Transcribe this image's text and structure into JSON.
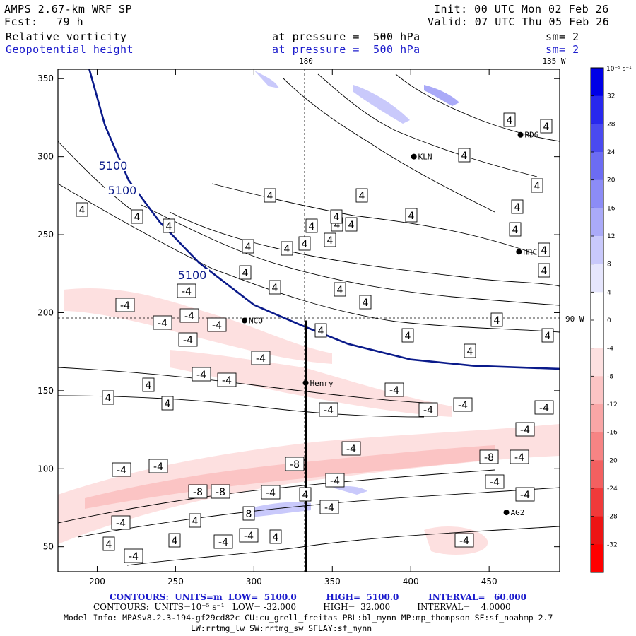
{
  "header": {
    "model": "AMPS 2.67-km WRF SP",
    "forecast_label": "Fcst:",
    "forecast_hours": "79 h",
    "init": "Init: 00 UTC Mon 02 Feb 26",
    "valid": "Valid: 07 UTC Thu 05 Feb 26",
    "field1_name": "Relative vorticity",
    "field1_level": "at pressure =  500 hPa",
    "field1_smooth": "sm= 2",
    "field2_name": "Geopotential height",
    "field2_level": "at pressure =  500 hPa",
    "field2_smooth": "sm= 2"
  },
  "map_labels": {
    "lon_top_1": "180",
    "lon_top_2": "135 W",
    "lat_right": "90 W"
  },
  "stations": [
    {
      "name": "KLN",
      "x": 402,
      "y": 300
    },
    {
      "name": "RDG",
      "x": 470,
      "y": 314
    },
    {
      "name": "HRC",
      "x": 469,
      "y": 239
    },
    {
      "name": "NCO",
      "x": 294,
      "y": 195
    },
    {
      "name": "Henry",
      "x": 333,
      "y": 155
    },
    {
      "name": "AG2",
      "x": 461,
      "y": 72
    }
  ],
  "colorbar": {
    "unit_label": "10⁻⁵ s⁻¹",
    "ticks": [
      "32",
      "28",
      "24",
      "20",
      "16",
      "12",
      "8",
      "4",
      "0",
      "-4",
      "-8",
      "-12",
      "-16",
      "-20",
      "-24",
      "-28",
      "-32"
    ],
    "colors_top_to_bottom": [
      "#0000e6",
      "#2828ee",
      "#4a4af0",
      "#6c6cf3",
      "#8c8cf6",
      "#aaaaf8",
      "#c9c9fb",
      "#e6e6fd",
      "#ffffff",
      "#ffffff",
      "#fde0e0",
      "#fbc4c4",
      "#f9a6a6",
      "#f68484",
      "#f36060",
      "#f03a3a",
      "#ed1414",
      "#ff0000"
    ]
  },
  "footer": {
    "line1": "CONTOURS:  UNITS=m  LOW=  5100.0          HIGH=  5100.0          INTERVAL=   60.000",
    "line2": "CONTOURS:  UNITS=10⁻⁵ s⁻¹   LOW= -32.000          HIGH=  32.000          INTERVAL=    4.0000",
    "line3": "Model Info: MPASv8.2.3-194-gf29cd82c CU:cu_grell_freitas PBL:bl_mynn MP:mp_thompson SF:sf_noahmp 2.7",
    "line4": "LW:rrtmg_lw SW:rrtmg_sw SFLAY:sf_mynn"
  },
  "chart_data": {
    "type": "heatmap",
    "xlim": [
      175,
      495
    ],
    "ylim": [
      34,
      356
    ],
    "x_ticks": [
      200,
      250,
      300,
      350,
      400,
      450
    ],
    "y_ticks": [
      50,
      100,
      150,
      200,
      250,
      300,
      350
    ],
    "grid_lines": {
      "x": 333,
      "y": 195
    },
    "cross_section_line": {
      "x": 333,
      "y_range": [
        34,
        195
      ]
    },
    "height_contour": {
      "level_label": "5100",
      "points": [
        [
          195,
          356
        ],
        [
          205,
          320
        ],
        [
          220,
          285
        ],
        [
          240,
          258
        ],
        [
          265,
          232
        ],
        [
          300,
          205
        ],
        [
          330,
          192
        ],
        [
          360,
          180
        ],
        [
          400,
          170
        ],
        [
          440,
          166
        ],
        [
          495,
          164
        ]
      ]
    },
    "contour_labels": [
      {
        "v": "4",
        "x": 351,
        "y": 349
      },
      {
        "v": "4",
        "x": 431,
        "y": 345
      },
      {
        "v": "4",
        "x": 441,
        "y": 320
      },
      {
        "v": "4",
        "x": 477,
        "y": 318
      },
      {
        "v": "4",
        "x": 497,
        "y": 318
      },
      {
        "v": "4",
        "x": 721,
        "y": 170
      },
      {
        "v": "4",
        "x": 773,
        "y": 179
      },
      {
        "v": "4",
        "x": 657,
        "y": 220
      },
      {
        "v": "4",
        "x": 760,
        "y": 263
      },
      {
        "v": "4",
        "x": 732,
        "y": 293
      },
      {
        "v": "4",
        "x": 729,
        "y": 325
      },
      {
        "v": "4",
        "x": 770,
        "y": 354
      },
      {
        "v": "4",
        "x": 770,
        "y": 383
      },
      {
        "v": "4",
        "x": 703,
        "y": 453
      },
      {
        "v": "4",
        "x": 775,
        "y": 475
      },
      {
        "v": "4",
        "x": 665,
        "y": 497
      },
      {
        "v": "4",
        "x": 577,
        "y": 475
      },
      {
        "v": "4",
        "x": 454,
        "y": 468
      },
      {
        "v": "4",
        "x": 517,
        "y": 428
      },
      {
        "v": "4",
        "x": 481,
        "y": 410
      },
      {
        "v": "4",
        "x": 389,
        "y": 407
      },
      {
        "v": "4",
        "x": 347,
        "y": 386
      },
      {
        "v": "4",
        "x": 406,
        "y": 352
      },
      {
        "v": "4",
        "x": 467,
        "y": 340
      },
      {
        "v": "4",
        "x": 476,
        "y": 307
      },
      {
        "v": "4",
        "x": 382,
        "y": 277
      },
      {
        "v": "4",
        "x": 512,
        "y": 277
      },
      {
        "v": "4",
        "x": 582,
        "y": 305
      },
      {
        "v": "4",
        "x": 239,
        "y": 320
      },
      {
        "v": "4",
        "x": 194,
        "y": 307
      },
      {
        "v": "4",
        "x": 116,
        "y": 297
      },
      {
        "v": "4",
        "x": 210,
        "y": 545
      },
      {
        "v": "4",
        "x": 153,
        "y": 563
      },
      {
        "v": "4",
        "x": 237,
        "y": 571
      },
      {
        "v": "4",
        "x": 276,
        "y": 737
      },
      {
        "v": "4",
        "x": 247,
        "y": 765
      },
      {
        "v": "4",
        "x": 154,
        "y": 770
      },
      {
        "v": "4",
        "x": 390,
        "y": 760
      },
      {
        "v": "-4",
        "x": 264,
        "y": 412
      },
      {
        "v": "-4",
        "x": 177,
        "y": 432
      },
      {
        "v": "-4",
        "x": 268,
        "y": 447
      },
      {
        "v": "-4",
        "x": 230,
        "y": 457
      },
      {
        "v": "-4",
        "x": 307,
        "y": 460
      },
      {
        "v": "-4",
        "x": 266,
        "y": 481
      },
      {
        "v": "-4",
        "x": 369,
        "y": 507
      },
      {
        "v": "-4",
        "x": 285,
        "y": 530
      },
      {
        "v": "-4",
        "x": 321,
        "y": 538
      },
      {
        "v": "-4",
        "x": 558,
        "y": 552
      },
      {
        "v": "-4",
        "x": 465,
        "y": 580
      },
      {
        "v": "-4",
        "x": 606,
        "y": 580
      },
      {
        "v": "-4",
        "x": 655,
        "y": 573
      },
      {
        "v": "-4",
        "x": 770,
        "y": 577
      },
      {
        "v": "-4",
        "x": 743,
        "y": 608
      },
      {
        "v": "-4",
        "x": 497,
        "y": 635
      },
      {
        "v": "-4",
        "x": 735,
        "y": 647
      },
      {
        "v": "-4",
        "x": 224,
        "y": 660
      },
      {
        "v": "-4",
        "x": 172,
        "y": 665
      },
      {
        "v": "-4",
        "x": 474,
        "y": 680
      },
      {
        "v": "-4",
        "x": 700,
        "y": 682
      },
      {
        "v": "-4",
        "x": 383,
        "y": 697
      },
      {
        "v": "-4",
        "x": 743,
        "y": 700
      },
      {
        "v": "-4",
        "x": 466,
        "y": 718
      },
      {
        "v": "-4",
        "x": 171,
        "y": 740
      },
      {
        "v": "-4",
        "x": 352,
        "y": 758
      },
      {
        "v": "-4",
        "x": 316,
        "y": 767
      },
      {
        "v": "-4",
        "x": 189,
        "y": 787
      },
      {
        "v": "-4",
        "x": 657,
        "y": 765
      },
      {
        "v": "-8",
        "x": 417,
        "y": 657
      },
      {
        "v": "-8",
        "x": 692,
        "y": 647
      },
      {
        "v": "-8",
        "x": 280,
        "y": 696
      },
      {
        "v": "-8",
        "x": 312,
        "y": 696
      },
      {
        "v": "8",
        "x": 352,
        "y": 727
      },
      {
        "v": "4",
        "x": 432,
        "y": 700
      }
    ]
  }
}
